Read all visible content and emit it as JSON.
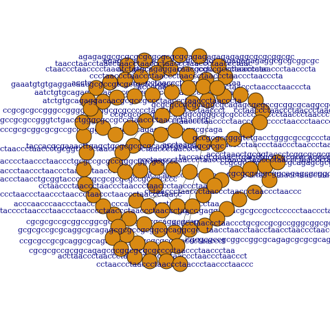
{
  "figure": {
    "background": "#ffffff",
    "node_color": "#d98a13",
    "node_stroke": "#3b2a12",
    "label_color": "#000080"
  },
  "sequence_labels": [
    "agagaggcgcgcgcgcgcgcgcgcagagagagagaggcgcgcggcgc",
    "taacctaacctaacctaacctaaccctaaccctaaccctaaccctaac",
    "ctaaccctaacccctaaccctaacccctaaccctaaccctaaccctaccctaac",
    "ccctaaccctaaccctaaccctaaccctaaccctaaccctaacccta",
    "acctaacctaacctaacccctaaccctaaccctaaccctaa",
    "gaaatgtgtgaggacaacgcgccgtcgctgctcgcgcc",
    "aatctgtgcagaggacaacgcgccgcctccccctaaccctaacctaaccct",
    "atctgtgcagaggacaacgcgccgccctaaccctaaccctaacccta",
    "ccgcgcgccgggccggggcggggcgcgccccctaaccctaaccctaaccct",
    "gccgcgccgggtctgacctgggcgccgccctaaccctaaccctaaccct",
    "cccgcgcggcgcgccgcgccggcgcaggcgcagagcgcgcaggcgcaga",
    "taccacgcgaaacttgagctgcgcgcgcgcaggcgcagagcgcgc",
    "ctaaccctaaccctgcggtaccctaaccctaaccctaaccctaaccct",
    "acccctaaccctaaccctgcgccgcgccgggcggcgcgccc",
    "accctaaccctaaccctaaccctaaccctaaccctaacccta",
    "cctaaccctaaccctaaccctaaccctaaccctaaccctaa",
    "accctaacctgcggtaccctcggcgcgcgcgccgcggcccc",
    "ccctaaccctaaccctaaccctaaccctaaccctaaccctaacc",
    "acccaacccaaccctaaccctaacccaaccctaacctaacctaacctaa",
    "tacccctaaccctaaccctaacccctaaccctaaccctaaccctaacc",
    "cgcgcgccgcggccggcgcagagcgcgcgcaggcgcagcggc",
    "gcgcgccgcgcaggcgcagagcgcgccgcggcgcaggcgc",
    "ccgcgccgcgcaggcgcagagcgcgcagcgcgcctaaccctaaccct",
    "cgcgcgccgcggcagagcgcggcgcgcgcccctaaccctaaccctaa",
    "acctaaccctaaccctaaccctaaccctaaccctaaccctaaccct",
    "cctaaccctaaccctaaccctaaccctaaccctaaccc"
  ]
}
